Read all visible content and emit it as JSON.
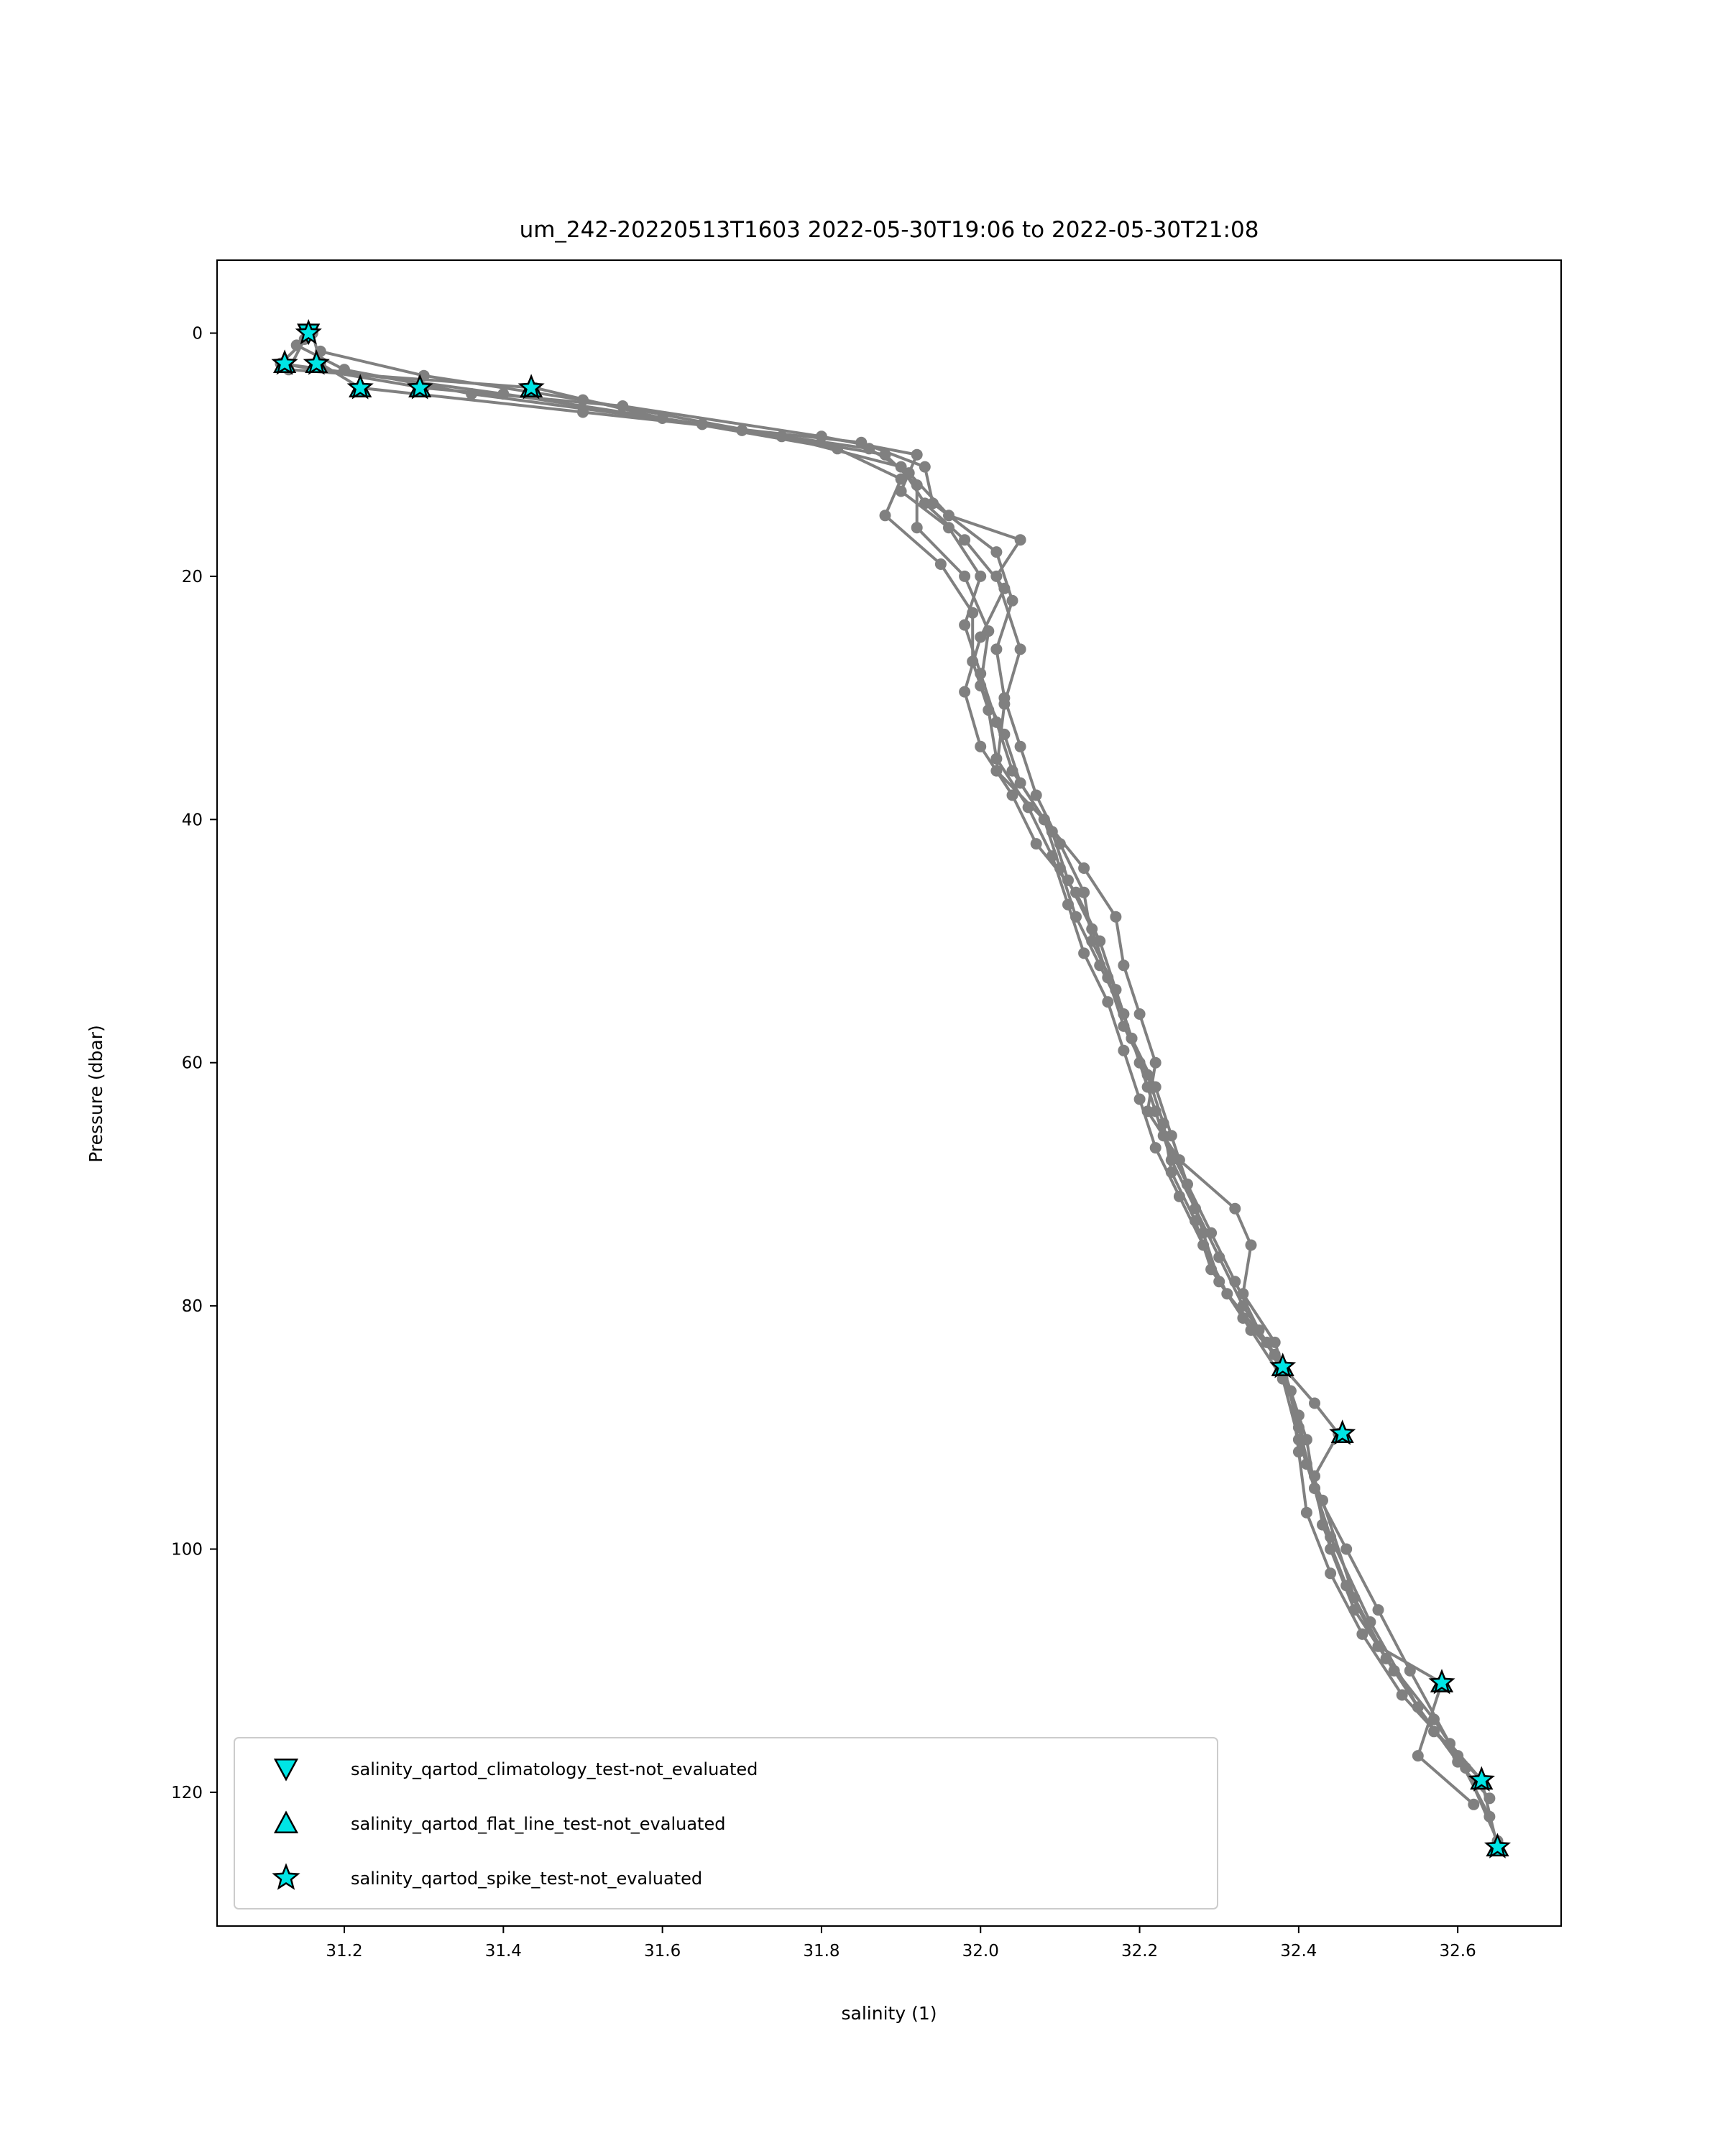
{
  "chart_data": {
    "type": "line",
    "title": "um_242-20220513T1603 2022-05-30T19:06 to 2022-05-30T21:08",
    "xlabel": "salinity (1)",
    "ylabel": "Pressure (dbar)",
    "xlim": [
      31.04,
      32.73
    ],
    "ylim": [
      131,
      -6
    ],
    "y_inverted": true,
    "grid": false,
    "xticks": [
      "31.2",
      "31.4",
      "31.6",
      "31.8",
      "32.0",
      "32.2",
      "32.4",
      "32.6"
    ],
    "yticks": [
      "0",
      "20",
      "40",
      "60",
      "80",
      "100",
      "120"
    ],
    "line_color": "#808080",
    "marker_color": "#00e5e5",
    "legend_position": "lower-left",
    "legend": [
      {
        "marker": "triangle-down",
        "label": "salinity_qartod_climatology_test-not_evaluated"
      },
      {
        "marker": "triangle-up",
        "label": "salinity_qartod_flat_line_test-not_evaluated"
      },
      {
        "marker": "star",
        "label": "salinity_qartod_spike_test-not_evaluated"
      }
    ],
    "series": [
      {
        "values": [
          [
            31.16,
            0.0
          ],
          [
            31.12,
            2.5
          ],
          [
            31.3,
            4.5
          ],
          [
            31.55,
            6.0
          ],
          [
            31.8,
            8.5
          ],
          [
            31.92,
            10.0
          ],
          [
            31.9,
            13.0
          ],
          [
            31.96,
            16.0
          ],
          [
            32.0,
            20.0
          ],
          [
            31.98,
            24.0
          ],
          [
            32.0,
            28.0
          ],
          [
            32.02,
            32.0
          ],
          [
            32.04,
            36.0
          ],
          [
            32.08,
            40.0
          ],
          [
            32.1,
            44.0
          ],
          [
            32.12,
            48.0
          ],
          [
            32.15,
            52.0
          ],
          [
            32.18,
            56.0
          ],
          [
            32.2,
            60.0
          ],
          [
            32.22,
            64.0
          ],
          [
            32.24,
            68.0
          ],
          [
            32.27,
            72.0
          ],
          [
            32.3,
            76.0
          ],
          [
            32.33,
            80.0
          ],
          [
            32.38,
            85.0
          ],
          [
            32.4,
            90.0
          ],
          [
            32.42,
            95.0
          ],
          [
            32.44,
            100.0
          ],
          [
            32.47,
            105.0
          ],
          [
            32.52,
            110.0
          ],
          [
            32.57,
            115.0
          ],
          [
            32.63,
            119.0
          ],
          [
            32.65,
            124.5
          ]
        ]
      },
      {
        "values": [
          [
            31.16,
            0.0
          ],
          [
            31.17,
            2.5
          ],
          [
            31.22,
            4.5
          ],
          [
            31.5,
            6.5
          ],
          [
            31.85,
            9.0
          ],
          [
            31.93,
            11.0
          ],
          [
            31.94,
            14.0
          ],
          [
            32.02,
            18.0
          ],
          [
            32.04,
            22.0
          ],
          [
            32.02,
            26.0
          ],
          [
            32.03,
            30.0
          ],
          [
            32.05,
            34.0
          ],
          [
            32.07,
            38.0
          ],
          [
            32.1,
            42.0
          ],
          [
            32.13,
            46.0
          ],
          [
            32.14,
            50.0
          ],
          [
            32.17,
            54.0
          ],
          [
            32.19,
            58.0
          ],
          [
            32.21,
            62.0
          ],
          [
            32.23,
            66.0
          ],
          [
            32.26,
            70.0
          ],
          [
            32.29,
            74.0
          ],
          [
            32.32,
            78.0
          ],
          [
            32.35,
            82.0
          ],
          [
            32.38,
            85.0
          ],
          [
            32.42,
            88.0
          ],
          [
            32.45,
            90.5
          ],
          [
            32.42,
            94.0
          ],
          [
            32.43,
            98.0
          ],
          [
            32.46,
            103.0
          ],
          [
            32.5,
            108.0
          ],
          [
            32.58,
            111.0
          ],
          [
            32.55,
            117.0
          ],
          [
            32.62,
            121.0
          ]
        ]
      },
      {
        "values": [
          [
            31.15,
            0.5
          ],
          [
            31.13,
            3.0
          ],
          [
            31.44,
            4.5
          ],
          [
            31.6,
            7.0
          ],
          [
            31.82,
            9.5
          ],
          [
            31.9,
            12.0
          ],
          [
            31.88,
            15.0
          ],
          [
            31.95,
            19.0
          ],
          [
            31.99,
            23.0
          ],
          [
            31.99,
            27.0
          ],
          [
            32.01,
            31.0
          ],
          [
            32.02,
            35.0
          ],
          [
            32.06,
            39.0
          ],
          [
            32.09,
            43.0
          ],
          [
            32.11,
            47.0
          ],
          [
            32.13,
            51.0
          ],
          [
            32.16,
            55.0
          ],
          [
            32.18,
            59.0
          ],
          [
            32.2,
            63.0
          ],
          [
            32.22,
            67.0
          ],
          [
            32.25,
            71.0
          ],
          [
            32.28,
            75.0
          ],
          [
            32.31,
            79.0
          ],
          [
            32.36,
            83.0
          ],
          [
            32.39,
            87.0
          ],
          [
            32.4,
            92.0
          ],
          [
            32.41,
            97.0
          ],
          [
            32.44,
            102.0
          ],
          [
            32.48,
            107.0
          ],
          [
            32.53,
            112.0
          ],
          [
            32.6,
            117.0
          ],
          [
            32.64,
            122.0
          ]
        ]
      },
      {
        "values": [
          [
            31.14,
            1.0
          ],
          [
            31.2,
            3.0
          ],
          [
            31.36,
            5.0
          ],
          [
            31.65,
            7.5
          ],
          [
            31.88,
            10.0
          ],
          [
            31.92,
            12.5
          ],
          [
            31.92,
            16.0
          ],
          [
            31.98,
            20.0
          ],
          [
            32.01,
            24.5
          ],
          [
            32.0,
            29.0
          ],
          [
            32.03,
            33.0
          ],
          [
            32.05,
            37.0
          ],
          [
            32.09,
            41.0
          ],
          [
            32.11,
            45.0
          ],
          [
            32.14,
            49.0
          ],
          [
            32.16,
            53.0
          ],
          [
            32.18,
            57.0
          ],
          [
            32.21,
            61.0
          ],
          [
            32.23,
            65.0
          ],
          [
            32.24,
            69.0
          ],
          [
            32.27,
            73.0
          ],
          [
            32.29,
            77.0
          ],
          [
            32.33,
            81.0
          ],
          [
            32.37,
            84.0
          ],
          [
            32.4,
            89.0
          ],
          [
            32.41,
            93.0
          ],
          [
            32.43,
            96.0
          ],
          [
            32.47,
            104.0
          ],
          [
            32.51,
            109.0
          ],
          [
            32.57,
            114.0
          ],
          [
            32.61,
            118.0
          ],
          [
            32.65,
            124.0
          ]
        ]
      },
      {
        "values": [
          [
            31.17,
            1.5
          ],
          [
            31.3,
            3.5
          ],
          [
            31.5,
            5.5
          ],
          [
            31.75,
            8.5
          ],
          [
            31.9,
            11.0
          ],
          [
            31.93,
            14.0
          ],
          [
            31.98,
            17.0
          ],
          [
            32.03,
            21.0
          ],
          [
            32.0,
            25.0
          ],
          [
            31.98,
            29.5
          ],
          [
            32.0,
            34.0
          ],
          [
            32.04,
            38.0
          ],
          [
            32.07,
            42.0
          ],
          [
            32.12,
            46.0
          ],
          [
            32.15,
            50.0
          ],
          [
            32.17,
            54.0
          ],
          [
            32.19,
            58.0
          ],
          [
            32.22,
            62.0
          ],
          [
            32.24,
            66.0
          ],
          [
            32.26,
            70.0
          ],
          [
            32.28,
            74.0
          ],
          [
            32.3,
            78.0
          ],
          [
            32.34,
            82.0
          ],
          [
            32.38,
            86.0
          ],
          [
            32.4,
            91.0
          ],
          [
            32.44,
            99.0
          ],
          [
            32.49,
            106.0
          ],
          [
            32.55,
            113.0
          ],
          [
            32.6,
            117.5
          ],
          [
            32.64,
            120.5
          ]
        ]
      },
      {
        "values": [
          [
            31.12,
            2.5
          ],
          [
            31.4,
            5.0
          ],
          [
            31.7,
            8.0
          ],
          [
            31.86,
            9.5
          ],
          [
            31.91,
            11.5
          ],
          [
            31.96,
            15.0
          ],
          [
            32.05,
            17.0
          ],
          [
            32.02,
            20.0
          ],
          [
            32.05,
            26.0
          ],
          [
            32.03,
            30.5
          ],
          [
            32.02,
            36.0
          ],
          [
            32.08,
            40.0
          ],
          [
            32.13,
            44.0
          ],
          [
            32.17,
            48.0
          ],
          [
            32.18,
            52.0
          ],
          [
            32.2,
            56.0
          ],
          [
            32.22,
            60.0
          ],
          [
            32.21,
            64.0
          ],
          [
            32.25,
            68.0
          ],
          [
            32.32,
            72.0
          ],
          [
            32.34,
            75.0
          ],
          [
            32.33,
            79.0
          ],
          [
            32.37,
            83.0
          ],
          [
            32.39,
            87.0
          ],
          [
            32.41,
            91.0
          ],
          [
            32.42,
            95.0
          ],
          [
            32.46,
            100.0
          ],
          [
            32.5,
            105.0
          ],
          [
            32.54,
            110.0
          ],
          [
            32.59,
            116.0
          ],
          [
            32.63,
            119.0
          ]
        ]
      }
    ],
    "flagged_points": [
      {
        "test": "climatology",
        "marker": "triangle-down",
        "points": [
          [
            31.155,
            0.0
          ]
        ]
      },
      {
        "test": "flat_line",
        "marker": "triangle-up",
        "points": [
          [
            31.125,
            2.5
          ],
          [
            31.165,
            2.5
          ],
          [
            31.22,
            4.5
          ],
          [
            31.295,
            4.5
          ],
          [
            31.435,
            4.5
          ],
          [
            32.38,
            85.0
          ],
          [
            32.455,
            90.5
          ],
          [
            32.58,
            111.0
          ],
          [
            32.63,
            119.0
          ],
          [
            32.65,
            124.5
          ]
        ]
      },
      {
        "test": "spike",
        "marker": "star",
        "points": [
          [
            31.155,
            0.0
          ],
          [
            31.125,
            2.5
          ],
          [
            31.165,
            2.5
          ],
          [
            31.22,
            4.5
          ],
          [
            31.295,
            4.5
          ],
          [
            31.435,
            4.5
          ],
          [
            32.38,
            85.0
          ],
          [
            32.455,
            90.5
          ],
          [
            32.58,
            111.0
          ],
          [
            32.63,
            119.0
          ],
          [
            32.65,
            124.5
          ]
        ]
      }
    ]
  }
}
